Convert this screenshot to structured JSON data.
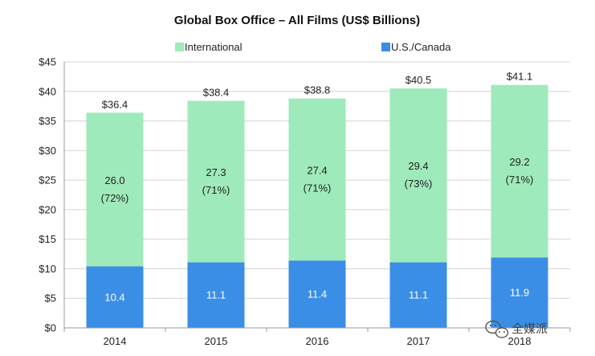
{
  "chart_data": {
    "type": "bar",
    "stacked": true,
    "title": "Global Box Office – All Films (US$ Billions)",
    "xlabel": "",
    "ylabel": "",
    "categories": [
      "2014",
      "2015",
      "2016",
      "2017",
      "2018"
    ],
    "series": [
      {
        "name": "U.S./Canada",
        "values": [
          10.4,
          11.1,
          11.4,
          11.1,
          11.9
        ],
        "labels": [
          "10.4",
          "11.1",
          "11.4",
          "11.1",
          "11.9"
        ],
        "color": "#3a8ee6"
      },
      {
        "name": "International",
        "values": [
          26.0,
          27.3,
          27.4,
          29.4,
          29.2
        ],
        "labels": [
          "26.0",
          "27.3",
          "27.4",
          "29.4",
          "29.2"
        ],
        "share_labels": [
          "(72%)",
          "(71%)",
          "(71%)",
          "(73%)",
          "(71%)"
        ],
        "color": "#9eeabb"
      }
    ],
    "totals": [
      36.4,
      38.4,
      38.8,
      40.5,
      41.1
    ],
    "total_labels": [
      "$36.4",
      "$38.4",
      "$38.8",
      "$40.5",
      "$41.1"
    ],
    "legend": [
      "International",
      "U.S./Canada"
    ],
    "legend_position": "top-center",
    "ylim": [
      0,
      45
    ],
    "ytick_step": 5,
    "ytick_labels": [
      "$0",
      "$5",
      "$10",
      "$15",
      "$20",
      "$25",
      "$30",
      "$35",
      "$40",
      "$45"
    ],
    "grid": true,
    "grid_color": "#d4d4d4",
    "axis_color": "#999999"
  },
  "watermark": {
    "text": "全媒派",
    "icon": "wechat-icon"
  }
}
